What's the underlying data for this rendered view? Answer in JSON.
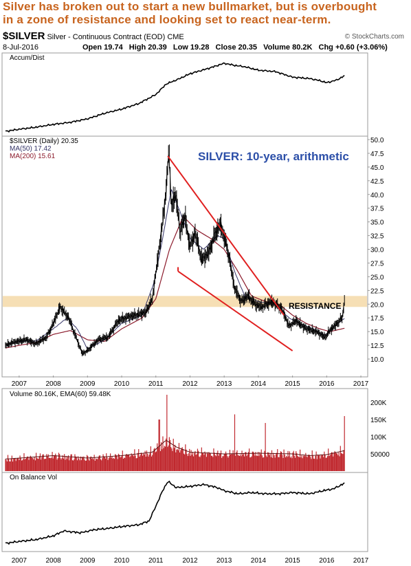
{
  "headline": {
    "line1": "Silver has broken out to start a new bullmarket, but is overbought",
    "line2": "in a zone of resistance and looking set to react near-term."
  },
  "header": {
    "symbol": "$SILVER",
    "description": "Silver - Continuous Contract (EOD)",
    "exchange": "CME",
    "source": "© StockCharts.com",
    "date": "8-Jul-2016",
    "open": "Open 19.74",
    "high": "High 20.39",
    "low": "Low 19.28",
    "close": "Close 20.35",
    "volume": "Volume 80.2K",
    "change": "Chg +0.60 (+3.06%)"
  },
  "panels": {
    "accum_label": "Accum/Dist",
    "price_label": "$SILVER (Daily) 20.35",
    "ma50_label": "MA(50) 17.42",
    "ma200_label": "MA(200) 15.61",
    "volume_label": "Volume 80.16K, EMA(60) 59.48K",
    "obv_label": "On Balance Vol"
  },
  "annotations": {
    "chart_title": "SILVER: 10-year, arithmetic",
    "resistance": "RESISTANCE"
  },
  "colors": {
    "headline": "#c8641e",
    "price": "#000000",
    "ma50": "#333366",
    "ma200": "#8b1a2b",
    "resistance_band": "#f5d9a8",
    "trendline": "#e02020",
    "volume_bars": "#c0282e",
    "title_blue": "#2c4fa8"
  },
  "chart_data": [
    {
      "type": "line",
      "panel": "accum_dist",
      "title": "Accum/Dist",
      "x": [
        2006.6,
        2007.0,
        2007.5,
        2008.0,
        2008.5,
        2009.0,
        2009.5,
        2010.0,
        2010.5,
        2011.0,
        2011.3,
        2011.7,
        2012.0,
        2012.5,
        2013.0,
        2013.3,
        2013.6,
        2014.0,
        2014.5,
        2015.0,
        2015.5,
        2015.8,
        2016.0,
        2016.3,
        2016.52
      ],
      "values": [
        0.02,
        0.05,
        0.08,
        0.12,
        0.15,
        0.2,
        0.28,
        0.34,
        0.42,
        0.55,
        0.7,
        0.78,
        0.85,
        0.92,
        1.0,
        0.97,
        0.95,
        0.9,
        0.88,
        0.8,
        0.78,
        0.75,
        0.72,
        0.76,
        0.82
      ],
      "grid": false
    },
    {
      "type": "line",
      "panel": "price",
      "title": "$SILVER (Daily) 20.35",
      "ylim": [
        8.0,
        50.0
      ],
      "yticks": [
        "10.0",
        "12.5",
        "15.0",
        "17.5",
        "20.0",
        "22.5",
        "25.0",
        "27.5",
        "30.0",
        "32.5",
        "35.0",
        "37.5",
        "40.0",
        "42.5",
        "45.0",
        "47.5",
        "50.0"
      ],
      "xticks": [
        "2007",
        "2008",
        "2009",
        "2010",
        "2011",
        "2012",
        "2013",
        "2014",
        "2015",
        "2016",
        "2017"
      ],
      "series": [
        {
          "name": "$SILVER (Daily) 20.35",
          "x": [
            2006.6,
            2006.8,
            2007.0,
            2007.2,
            2007.5,
            2007.8,
            2008.0,
            2008.2,
            2008.45,
            2008.6,
            2008.85,
            2009.0,
            2009.3,
            2009.6,
            2009.9,
            2010.1,
            2010.4,
            2010.7,
            2010.9,
            2011.05,
            2011.2,
            2011.32,
            2011.38,
            2011.45,
            2011.6,
            2011.7,
            2011.85,
            2012.0,
            2012.15,
            2012.35,
            2012.55,
            2012.75,
            2012.9,
            2013.1,
            2013.3,
            2013.5,
            2013.7,
            2013.9,
            2014.1,
            2014.4,
            2014.7,
            2014.9,
            2015.1,
            2015.4,
            2015.7,
            2015.95,
            2016.1,
            2016.3,
            2016.45,
            2016.52
          ],
          "values": [
            12.5,
            13.0,
            13.3,
            13.5,
            12.8,
            14.0,
            16.5,
            19.5,
            17.5,
            15.0,
            11.0,
            11.5,
            13.5,
            14.0,
            17.0,
            17.5,
            18.0,
            18.5,
            21.0,
            28.0,
            35.0,
            42.0,
            48.5,
            38.0,
            40.0,
            33.0,
            36.0,
            30.5,
            33.0,
            28.0,
            29.5,
            33.0,
            34.5,
            30.0,
            23.0,
            20.5,
            21.5,
            20.0,
            19.5,
            20.5,
            19.0,
            16.0,
            17.0,
            15.5,
            15.0,
            14.0,
            15.2,
            16.5,
            17.5,
            20.35
          ]
        },
        {
          "name": "MA(50) 17.42",
          "x": [
            2006.6,
            2007.0,
            2007.5,
            2008.0,
            2008.4,
            2008.7,
            2009.0,
            2009.5,
            2010.0,
            2010.6,
            2010.95,
            2011.2,
            2011.45,
            2011.7,
            2012.0,
            2012.4,
            2012.8,
            2013.0,
            2013.3,
            2013.6,
            2014.0,
            2014.5,
            2014.9,
            2015.2,
            2015.6,
            2015.95,
            2016.2,
            2016.52
          ],
          "values": [
            12.5,
            13.2,
            13.3,
            15.5,
            17.5,
            15.5,
            11.8,
            13.5,
            16.5,
            18.0,
            24.0,
            32.0,
            41.0,
            37.0,
            32.0,
            30.0,
            32.5,
            32.0,
            26.0,
            21.5,
            20.5,
            19.8,
            17.5,
            16.5,
            15.5,
            14.3,
            15.8,
            17.42
          ]
        },
        {
          "name": "MA(200) 15.61",
          "x": [
            2006.6,
            2007.0,
            2007.5,
            2008.0,
            2008.5,
            2009.0,
            2009.5,
            2010.0,
            2010.6,
            2011.0,
            2011.4,
            2011.8,
            2012.2,
            2012.6,
            2013.0,
            2013.4,
            2013.8,
            2014.2,
            2014.6,
            2015.0,
            2015.4,
            2015.8,
            2016.1,
            2016.52
          ],
          "values": [
            12.0,
            12.5,
            13.0,
            14.5,
            15.2,
            13.5,
            13.2,
            15.5,
            17.5,
            21.0,
            30.0,
            36.0,
            33.5,
            32.0,
            30.0,
            26.0,
            21.5,
            20.5,
            20.0,
            18.0,
            16.5,
            15.5,
            15.0,
            15.61
          ]
        }
      ],
      "annotations": {
        "resistance_zone": [
          19.5,
          21.5
        ],
        "upper_trendline": [
          [
            2011.35,
            47.0
          ],
          [
            2014.75,
            18.0
          ]
        ],
        "lower_trendline": [
          [
            2011.65,
            26.0
          ],
          [
            2015.0,
            11.5
          ]
        ]
      },
      "legend": "top-left"
    },
    {
      "type": "bar",
      "panel": "volume",
      "title": "Volume 80.16K, EMA(60) 59.48K",
      "ylim": [
        0,
        230000
      ],
      "yticks": [
        "50000",
        "100K",
        "150K",
        "200K"
      ],
      "ema_x": [
        2006.6,
        2008.0,
        2009.0,
        2010.0,
        2010.9,
        2011.3,
        2011.6,
        2012.0,
        2013.0,
        2014.0,
        2015.0,
        2015.5,
        2016.0,
        2016.52
      ],
      "ema_values": [
        35000,
        45000,
        38000,
        45000,
        55000,
        90000,
        70000,
        55000,
        50000,
        52000,
        50000,
        45000,
        48000,
        59480
      ],
      "spikes": [
        [
          2011.33,
          222000
        ],
        [
          2013.3,
          165000
        ],
        [
          2016.52,
          160000
        ],
        [
          2011.1,
          150000
        ],
        [
          2014.2,
          140000
        ]
      ]
    },
    {
      "type": "line",
      "panel": "obv",
      "title": "On Balance Vol",
      "xticks": [
        "2007",
        "2008",
        "2009",
        "2010",
        "2011",
        "2012",
        "2013",
        "2014",
        "2015",
        "2016",
        "2017"
      ],
      "x": [
        2006.6,
        2007.0,
        2007.5,
        2008.0,
        2008.3,
        2008.8,
        2009.2,
        2009.6,
        2010.0,
        2010.5,
        2010.8,
        2011.0,
        2011.2,
        2011.35,
        2011.6,
        2012.0,
        2012.4,
        2012.8,
        2013.0,
        2013.4,
        2013.8,
        2014.2,
        2014.6,
        2015.0,
        2015.5,
        2015.9,
        2016.2,
        2016.52
      ],
      "values": [
        0.0,
        0.03,
        0.06,
        0.12,
        0.2,
        0.17,
        0.22,
        0.24,
        0.27,
        0.3,
        0.36,
        0.6,
        0.85,
        1.0,
        0.9,
        0.92,
        0.95,
        0.9,
        0.85,
        0.8,
        0.82,
        0.8,
        0.8,
        0.82,
        0.8,
        0.85,
        0.88,
        0.97
      ]
    }
  ]
}
